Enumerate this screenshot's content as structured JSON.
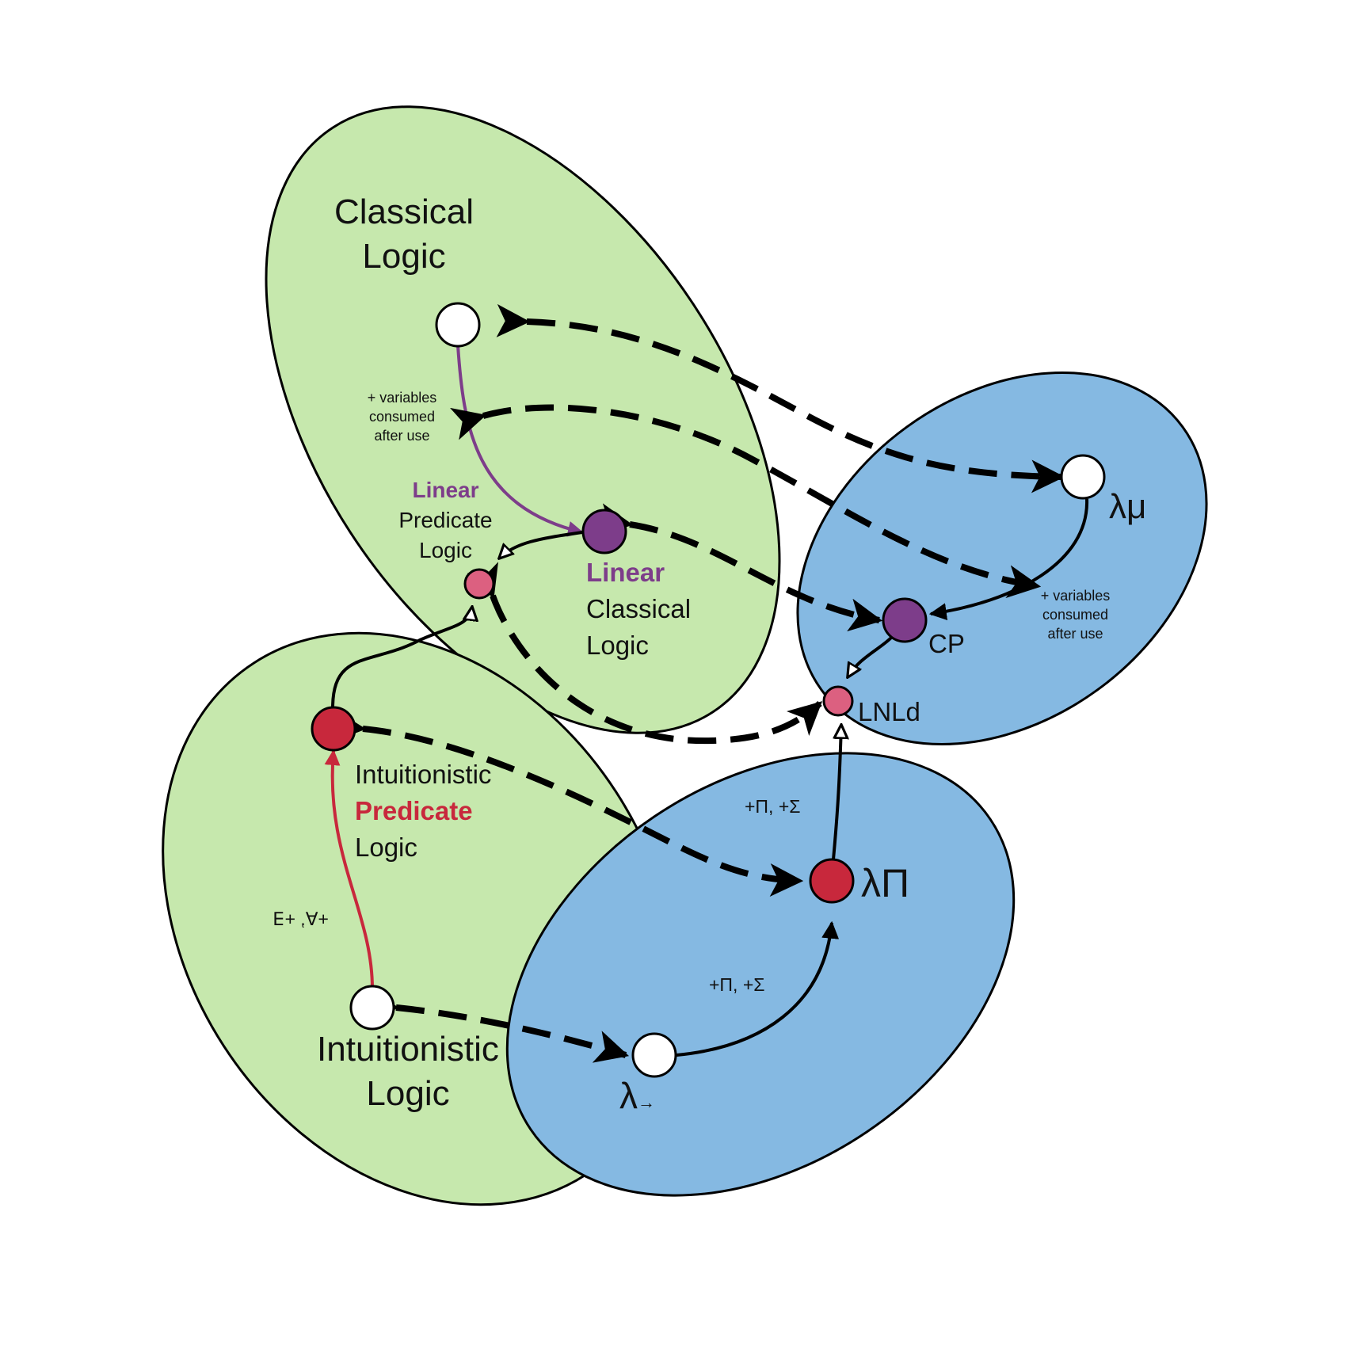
{
  "colors": {
    "logic_region": "#c6e8ad",
    "calculus_region": "#85b9e2",
    "outline": "#000000",
    "node_white": "#ffffff",
    "node_purple": "#7d3d8a",
    "node_red": "#c8283c",
    "node_pink": "#dc6080",
    "linear_text": "#7d3d8a",
    "predicate_text": "#c8283c",
    "red_arrow": "#c8283c",
    "purple_arrow": "#7d3d8a"
  },
  "regions": {
    "classical": {
      "title_line1": "Classical",
      "title_line2": "Logic"
    },
    "intuitionistic": {
      "title_line1": "Intuitionistic",
      "title_line2": "Logic"
    }
  },
  "nodes": {
    "linear_predicate": {
      "word1": "Linear",
      "word2": "Predicate",
      "word3": "Logic"
    },
    "linear_classical": {
      "word1": "Linear",
      "word2": "Classical",
      "word3": "Logic"
    },
    "intuitionistic_predicate": {
      "word1": "Intuitionistic",
      "word2": "Predicate",
      "word3": "Logic"
    },
    "lambda_mu": {
      "label": "λμ"
    },
    "cp": {
      "label": "CP"
    },
    "lnld": {
      "label": "LNLd"
    },
    "lambda_pi": {
      "label": "λΠ"
    },
    "lambda_arrow": {
      "symbol": "λ",
      "subscript": "→"
    }
  },
  "edge_labels": {
    "classical_to_linear_line1": "+ variables",
    "classical_to_linear_line2": "consumed",
    "classical_to_linear_line3": "after use",
    "lambdamu_to_cp_line1": "+ variables",
    "lambdamu_to_cp_line2": "consumed",
    "lambdamu_to_cp_line3": "after use",
    "lambdapi_to_lnld": "+Π, +Σ",
    "lambdaarrow_to_lambdapi": "+Π, +Σ",
    "intuitionistic_to_predicate": "+∀, +∃"
  }
}
